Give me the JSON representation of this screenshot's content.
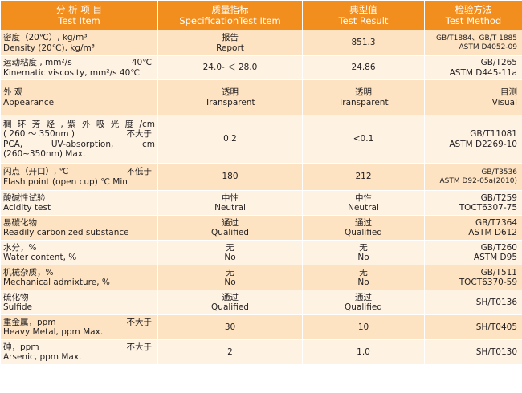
{
  "header": {
    "col1_cn": "分 析 项 目",
    "col1_en": "Test Item",
    "col2_cn": "质量指标",
    "col2_en": "SpecificationTest Item",
    "col3_cn": "典型值",
    "col3_en": "Test Result",
    "col4_cn": "检验方法",
    "col4_en": "Test Method"
  },
  "rows": [
    {
      "item_cn": "密度（20℃）, kg/m³",
      "item_en": "Density (20℃), kg/m³",
      "spec_cn": "报告",
      "spec_en": "Report",
      "result": "851.3",
      "method1": "GB/T1884、GB/T 1885",
      "method2": "ASTM D4052-09"
    },
    {
      "item_cn_left": "运动粘度 , mm²/s",
      "item_cn_right": "40℃",
      "item_en": "Kinematic viscosity, mm²/s 40℃",
      "spec": "24.0- ＜ 28.0",
      "result": "24.86",
      "method1": "GB/T265",
      "method2": "ASTM D445-11a"
    },
    {
      "item_cn": "外 观",
      "item_en": "Appearance",
      "spec_cn": "透明",
      "spec_en": "Transparent",
      "result_cn": "透明",
      "result_en": "Transparent",
      "method1": "目测",
      "method2": "Visual"
    },
    {
      "item_l1": "稠 环 芳 烃 , 紫 外 吸 光 度 /cm",
      "item_l2_left": "( 260 ～ 350nm )",
      "item_l2_right": "不大于",
      "item_l3": "PCA, UV-absorption, cm",
      "item_l4": "(260~350nm) Max.",
      "spec": "0.2",
      "result": "<0.1",
      "method1": "GB/T11081",
      "method2": "ASTM D2269-10"
    },
    {
      "item_cn_left": "闪点（开口）, ℃",
      "item_cn_right": "不低于",
      "item_en": "Flash point (open cup) ℃ Min",
      "spec": "180",
      "result": "212",
      "method1": "GB/T3536",
      "method2": "ASTM D92-05a(2010)"
    },
    {
      "item_cn": "酸碱性试验",
      "item_en": "Acidity test",
      "spec_cn": "中性",
      "spec_en": "Neutral",
      "result_cn": "中性",
      "result_en": "Neutral",
      "method1": "GB/T259",
      "method2": "TOCT6307-75"
    },
    {
      "item_cn": "易碳化物",
      "item_en": "Readily carbonized substance",
      "spec_cn": "通过",
      "spec_en": "Qualified",
      "result_cn": "通过",
      "result_en": "Qualified",
      "method1": "GB/T7364",
      "method2": "ASTM D612"
    },
    {
      "item_cn": "水分，%",
      "item_en": "Water content, %",
      "spec_cn": "无",
      "spec_en": "No",
      "result_cn": "无",
      "result_en": "No",
      "method1": "GB/T260",
      "method2": "ASTM D95"
    },
    {
      "item_cn": "机械杂质，%",
      "item_en": "Mechanical admixture, %",
      "spec_cn": "无",
      "spec_en": "No",
      "result_cn": "无",
      "result_en": "No",
      "method1": "GB/T511",
      "method2": "TOCT6370-59"
    },
    {
      "item_cn": "硫化物",
      "item_en": "Sulfide",
      "spec_cn": "通过",
      "spec_en": "Qualified",
      "result_cn": "通过",
      "result_en": "Qualified",
      "method": "SH/T0136"
    },
    {
      "item_cn_left": "重金属，ppm",
      "item_cn_right": "不大于",
      "item_en": "Heavy Metal, ppm Max.",
      "spec": "30",
      "result": "10",
      "method": "SH/T0405"
    },
    {
      "item_cn_left": "砷，ppm",
      "item_cn_right": "不大于",
      "item_en": "Arsenic, ppm Max.",
      "spec": "2",
      "result": "1.0",
      "method": "SH/T0130"
    }
  ]
}
